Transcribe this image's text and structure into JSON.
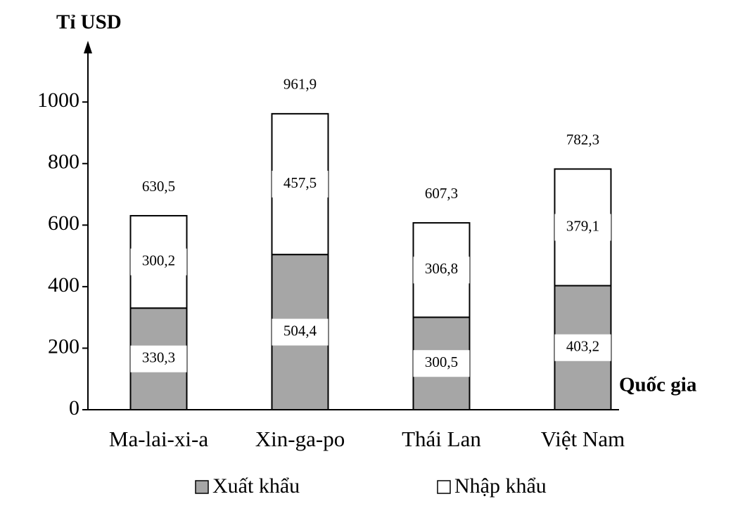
{
  "chart_data": {
    "type": "stacked_bar",
    "y_axis_label": "Tỉ USD",
    "x_axis_label": "Quốc gia",
    "categories": [
      "Ma-lai-xi-a",
      "Xin-ga-po",
      "Thái Lan",
      "Việt Nam"
    ],
    "series": [
      {
        "name": "Xuất khẩu",
        "color": "#a6a6a6",
        "values": [
          330.3,
          504.4,
          300.5,
          403.2
        ],
        "value_labels": [
          "330,3",
          "504,4",
          "300,5",
          "403,2"
        ]
      },
      {
        "name": "Nhập khẩu",
        "color": "#ffffff",
        "values": [
          300.2,
          457.5,
          306.8,
          379.1
        ],
        "value_labels": [
          "300,2",
          "457,5",
          "306,8",
          "379,1"
        ]
      }
    ],
    "totals": [
      630.5,
      961.9,
      607.3,
      782.3
    ],
    "total_labels": [
      "630,5",
      "961,9",
      "607,3",
      "782,3"
    ],
    "ylim": [
      0,
      1190
    ],
    "yticks": [
      0,
      200,
      400,
      600,
      800,
      1000
    ]
  }
}
